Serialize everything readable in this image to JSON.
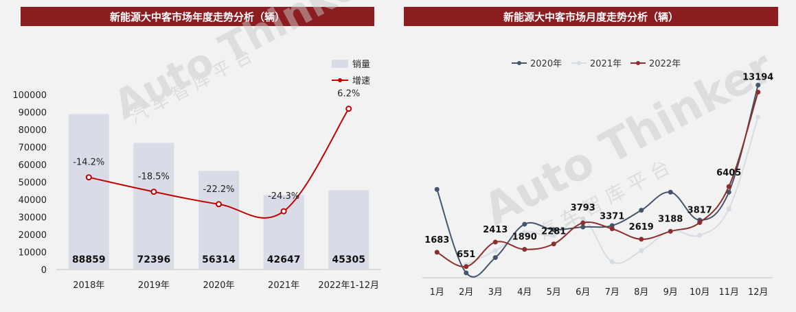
{
  "charts": {
    "left": {
      "title": "新能源大中客市场年度走势分析（辆）"
    },
    "right": {
      "title": "新能源大中客市场月度走势分析（辆）"
    }
  },
  "watermark": {
    "brand": "Auto Thinker",
    "subtitle": "汽 车 智 库 平 台"
  },
  "chart_data": [
    {
      "type": "bar",
      "title": "新能源大中客市场年度走势分析（辆）",
      "categories": [
        "2018年",
        "2019年",
        "2020年",
        "2021年",
        "2022年1-12月"
      ],
      "series": [
        {
          "name": "销量",
          "type": "bar",
          "values": [
            88859,
            72396,
            56314,
            42647,
            45305
          ],
          "color": "#d9dbe6"
        },
        {
          "name": "增速",
          "type": "line",
          "values": [
            -14.2,
            -18.5,
            -22.2,
            -24.3,
            6.2
          ],
          "labels": [
            "-14.2%",
            "-18.5%",
            "-22.2%",
            "-24.3%",
            "6.2%"
          ],
          "color": "#c00000"
        }
      ],
      "y_ticks": [
        "0",
        "10000",
        "20000",
        "30000",
        "40000",
        "50000",
        "60000",
        "70000",
        "80000",
        "90000",
        "100000"
      ],
      "ylim": [
        0,
        100000
      ],
      "legend_position": "top-right"
    },
    {
      "type": "line",
      "title": "新能源大中客市场月度走势分析（辆）",
      "categories": [
        "1月",
        "2月",
        "3月",
        "4月",
        "5月",
        "6月",
        "7月",
        "8月",
        "9月",
        "10月",
        "11月",
        "12月"
      ],
      "series": [
        {
          "name": "2020年",
          "color": "#44546a",
          "values": [
            6200,
            200,
            1300,
            3700,
            3300,
            3500,
            3600,
            4700,
            6000,
            4000,
            6000,
            13700
          ]
        },
        {
          "name": "2021年",
          "color": "#d6dce4",
          "values": [
            null,
            800,
            1800,
            3100,
            2900,
            4100,
            1000,
            1800,
            3200,
            2900,
            4800,
            11400
          ]
        },
        {
          "name": "2022年",
          "color": "#8b2e2e",
          "values": [
            1683,
            651,
            2413,
            1890,
            2281,
            3793,
            3371,
            2619,
            3188,
            3817,
            6405,
            13194
          ]
        }
      ],
      "data_labels": [
        "1683",
        "651",
        "2413",
        "1890",
        "2281",
        "3793",
        "3371",
        "2619",
        "3188",
        "3817",
        "6405",
        "13194"
      ],
      "legend_position": "top"
    }
  ]
}
